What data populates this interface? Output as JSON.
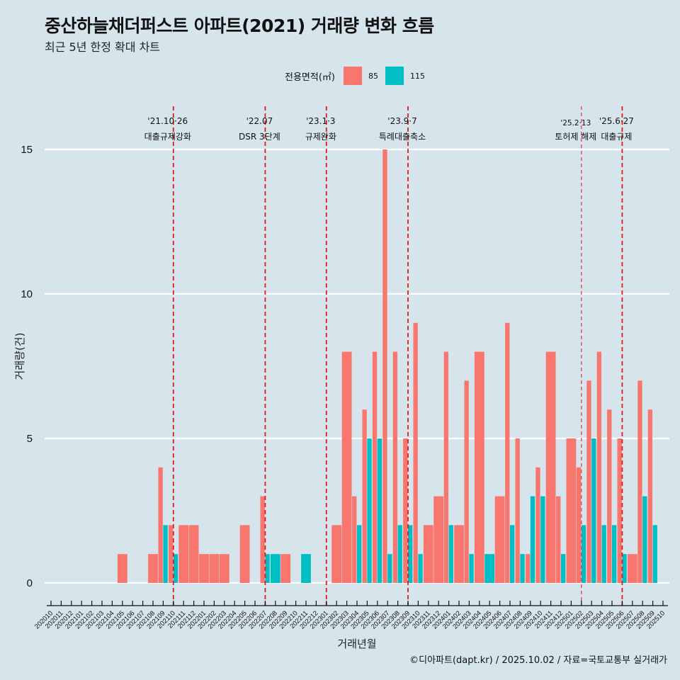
{
  "header": {
    "title": "중산하늘채더퍼스트 아파트(2021) 거래량 변화 흐름",
    "subtitle": "최근 5년 한정 확대 차트"
  },
  "legend": {
    "title": "전용면적(㎡)",
    "items": [
      {
        "label": "85",
        "color": "#f8766d"
      },
      {
        "label": "115",
        "color": "#00bfc4"
      }
    ]
  },
  "caption": "©디아파트(dapt.kr) / 2025.10.02 / 자료=국토교통부 실거래가",
  "chart_data": {
    "type": "bar",
    "title": "중산하늘채더퍼스트 아파트(2021) 거래량 변화 흐름",
    "subtitle": "최근 5년 한정 확대 차트",
    "xlabel": "거래년월",
    "ylabel": "거래량(건)",
    "ylim": [
      0,
      16.5
    ],
    "yticks": [
      0,
      5,
      10,
      15
    ],
    "grid": true,
    "legend_position": "top",
    "barmode": "dodge",
    "categories": [
      "202010",
      "202011",
      "202012",
      "202101",
      "202102",
      "202103",
      "202104",
      "202105",
      "202106",
      "202107",
      "202108",
      "202109",
      "202110",
      "202111",
      "202112",
      "202201",
      "202202",
      "202203",
      "202204",
      "202205",
      "202206",
      "202207",
      "202208",
      "202209",
      "202210",
      "202211",
      "202212",
      "202301",
      "202302",
      "202303",
      "202304",
      "202305",
      "202306",
      "202307",
      "202308",
      "202309",
      "202310",
      "202311",
      "202312",
      "202401",
      "202402",
      "202403",
      "202404",
      "202405",
      "202406",
      "202407",
      "202408",
      "202409",
      "202410",
      "202411",
      "202412",
      "202501",
      "202502",
      "202503",
      "202504",
      "202505",
      "202506",
      "202507",
      "202508",
      "202509",
      "202510"
    ],
    "series": [
      {
        "name": "85",
        "color": "#f8766d",
        "values": [
          0,
          0,
          0,
          0,
          0,
          0,
          0,
          1,
          0,
          0,
          1,
          4,
          2,
          2,
          2,
          1,
          1,
          1,
          0,
          2,
          0,
          3,
          0,
          1,
          0,
          0,
          0,
          0,
          2,
          8,
          3,
          6,
          8,
          15,
          8,
          5,
          9,
          2,
          3,
          8,
          2,
          7,
          8,
          0,
          3,
          9,
          5,
          1,
          4,
          8,
          3,
          5,
          4,
          7,
          8,
          6,
          5,
          1,
          7,
          6,
          0
        ]
      },
      {
        "name": "115",
        "color": "#00bfc4",
        "values": [
          0,
          0,
          0,
          0,
          0,
          0,
          0,
          0,
          0,
          0,
          0,
          2,
          1,
          0,
          0,
          0,
          0,
          0,
          0,
          0,
          0,
          1,
          1,
          0,
          0,
          1,
          0,
          0,
          0,
          0,
          2,
          5,
          5,
          1,
          2,
          2,
          1,
          0,
          0,
          2,
          0,
          1,
          0,
          1,
          0,
          2,
          1,
          3,
          3,
          0,
          1,
          0,
          2,
          5,
          2,
          2,
          1,
          0,
          3,
          2,
          0
        ]
      }
    ],
    "annotations": [
      {
        "x": "202110",
        "date": "'21.10·26",
        "label": "대출규제강화",
        "style": "dashed"
      },
      {
        "x": "202207",
        "date": "'22.07",
        "label": "DSR 3단계",
        "style": "dashed"
      },
      {
        "x": "202301",
        "date": "'23.1·3",
        "label": "규제완화",
        "style": "dashed"
      },
      {
        "x": "202309",
        "date": "'23.9·7",
        "label": "특례대출축소",
        "style": "dashed"
      },
      {
        "x": "202502",
        "date": "'25.2·13",
        "label": "토허제 해제",
        "style": "dashed-thin"
      },
      {
        "x": "202506",
        "date": "'25.6·27",
        "label": "대출규제",
        "style": "dashed"
      }
    ]
  }
}
